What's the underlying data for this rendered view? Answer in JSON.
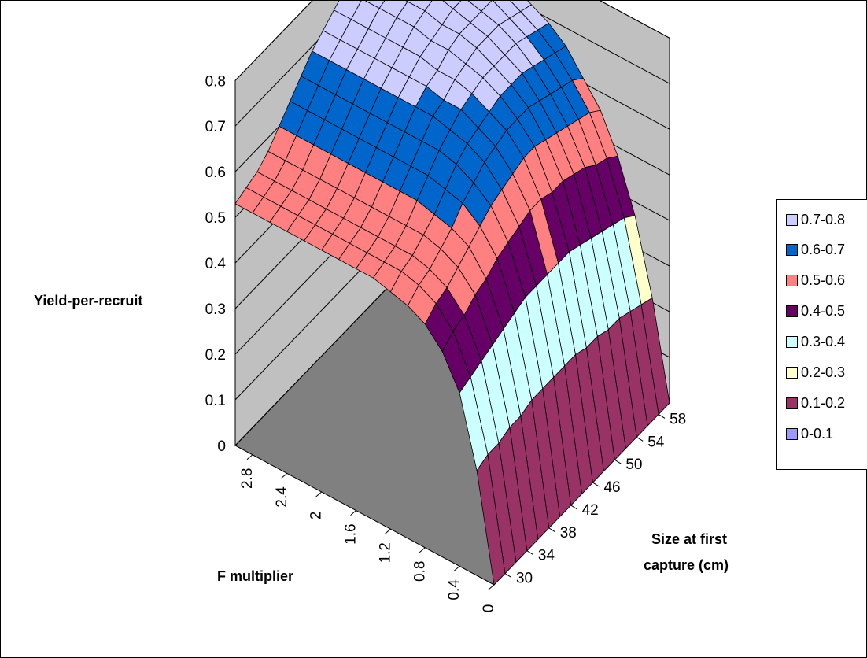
{
  "chart_data": {
    "type": "surface",
    "zlabel": "Yield-per-recruit",
    "xlabel": "F multiplier",
    "ylabel_lines": [
      "Size at first",
      "capture (cm)"
    ],
    "z_ticks": [
      "0",
      "0.1",
      "0.2",
      "0.3",
      "0.4",
      "0.5",
      "0.6",
      "0.7",
      "0.8"
    ],
    "x_ticks": [
      "0",
      "0.4",
      "0.8",
      "1.2",
      "1.6",
      "2",
      "2.4",
      "2.8"
    ],
    "y_ticks": [
      "30",
      "34",
      "38",
      "42",
      "46",
      "50",
      "54",
      "58"
    ],
    "zlim": [
      0,
      0.8
    ],
    "xlim": [
      0,
      3
    ],
    "ylim": [
      28,
      60
    ],
    "legend": [
      {
        "label": "0.7-0.8",
        "color": "#ccccff"
      },
      {
        "label": "0.6-0.7",
        "color": "#0066cc"
      },
      {
        "label": "0.5-0.6",
        "color": "#ff8080"
      },
      {
        "label": "0.4-0.5",
        "color": "#660066"
      },
      {
        "label": "0.3-0.4",
        "color": "#ccffff"
      },
      {
        "label": "0.2-0.3",
        "color": "#ffffcc"
      },
      {
        "label": "0.1-0.2",
        "color": "#993366"
      },
      {
        "label": "0-0.1",
        "color": "#9999ff"
      }
    ],
    "series": [
      {
        "size": 28,
        "values": [
          0,
          0.23,
          0.38,
          0.45,
          0.49,
          0.51,
          0.52,
          0.53,
          0.53,
          0.53,
          0.53,
          0.53,
          0.53,
          0.53,
          0.53,
          0.53
        ]
      },
      {
        "size": 30,
        "values": [
          0,
          0.24,
          0.39,
          0.47,
          0.51,
          0.53,
          0.54,
          0.54,
          0.54,
          0.54,
          0.54,
          0.54,
          0.54,
          0.54,
          0.54,
          0.54
        ]
      },
      {
        "size": 32,
        "values": [
          0,
          0.24,
          0.4,
          0.48,
          0.52,
          0.54,
          0.55,
          0.55,
          0.55,
          0.55,
          0.55,
          0.55,
          0.55,
          0.55,
          0.55,
          0.55
        ]
      },
      {
        "size": 34,
        "values": [
          0,
          0.25,
          0.41,
          0.5,
          0.54,
          0.56,
          0.57,
          0.57,
          0.57,
          0.57,
          0.57,
          0.57,
          0.57,
          0.57,
          0.57,
          0.57
        ]
      },
      {
        "size": 36,
        "values": [
          0,
          0.25,
          0.42,
          0.51,
          0.56,
          0.58,
          0.59,
          0.6,
          0.6,
          0.6,
          0.6,
          0.6,
          0.6,
          0.6,
          0.6,
          0.6
        ]
      },
      {
        "size": 38,
        "values": [
          0,
          0.26,
          0.43,
          0.53,
          0.58,
          0.61,
          0.62,
          0.63,
          0.63,
          0.63,
          0.63,
          0.63,
          0.63,
          0.63,
          0.63,
          0.63
        ]
      },
      {
        "size": 40,
        "values": [
          0,
          0.26,
          0.44,
          0.54,
          0.6,
          0.63,
          0.65,
          0.66,
          0.66,
          0.66,
          0.66,
          0.66,
          0.66,
          0.66,
          0.66,
          0.66
        ]
      },
      {
        "size": 42,
        "values": [
          0,
          0.26,
          0.44,
          0.55,
          0.61,
          0.65,
          0.67,
          0.68,
          0.69,
          0.69,
          0.69,
          0.69,
          0.69,
          0.69,
          0.69,
          0.69
        ]
      },
      {
        "size": 44,
        "values": [
          0,
          0.26,
          0.44,
          0.56,
          0.62,
          0.66,
          0.68,
          0.7,
          0.7,
          0.71,
          0.71,
          0.71,
          0.71,
          0.71,
          0.71,
          0.71
        ]
      },
      {
        "size": 46,
        "values": [
          0,
          0.26,
          0.44,
          0.56,
          0.63,
          0.67,
          0.69,
          0.71,
          0.72,
          0.72,
          0.73,
          0.73,
          0.73,
          0.73,
          0.73,
          0.73
        ]
      },
      {
        "size": 48,
        "values": [
          0,
          0.25,
          0.44,
          0.55,
          0.63,
          0.67,
          0.7,
          0.72,
          0.73,
          0.74,
          0.74,
          0.75,
          0.75,
          0.75,
          0.75,
          0.75
        ]
      },
      {
        "size": 50,
        "values": [
          0,
          0.25,
          0.43,
          0.55,
          0.62,
          0.67,
          0.7,
          0.72,
          0.74,
          0.75,
          0.75,
          0.76,
          0.76,
          0.76,
          0.76,
          0.76
        ]
      },
      {
        "size": 52,
        "values": [
          0,
          0.24,
          0.42,
          0.54,
          0.61,
          0.66,
          0.7,
          0.72,
          0.74,
          0.75,
          0.76,
          0.77,
          0.77,
          0.77,
          0.78,
          0.78
        ]
      },
      {
        "size": 54,
        "values": [
          0,
          0.24,
          0.41,
          0.53,
          0.6,
          0.65,
          0.69,
          0.72,
          0.74,
          0.75,
          0.76,
          0.77,
          0.78,
          0.78,
          0.78,
          0.79
        ]
      },
      {
        "size": 56,
        "values": [
          0,
          0.23,
          0.4,
          0.51,
          0.59,
          0.64,
          0.68,
          0.71,
          0.73,
          0.75,
          0.76,
          0.77,
          0.78,
          0.78,
          0.79,
          0.79
        ]
      },
      {
        "size": 58,
        "values": [
          0,
          0.22,
          0.39,
          0.5,
          0.58,
          0.63,
          0.67,
          0.7,
          0.72,
          0.74,
          0.75,
          0.76,
          0.77,
          0.78,
          0.78,
          0.79
        ]
      },
      {
        "size": 60,
        "values": [
          0,
          0.21,
          0.37,
          0.48,
          0.56,
          0.61,
          0.66,
          0.69,
          0.71,
          0.73,
          0.74,
          0.76,
          0.76,
          0.77,
          0.78,
          0.78
        ]
      }
    ],
    "f_values": [
      0,
      0.2,
      0.4,
      0.6,
      0.8,
      1.0,
      1.2,
      1.4,
      1.6,
      1.8,
      2.0,
      2.2,
      2.4,
      2.6,
      2.8,
      3.0
    ]
  }
}
